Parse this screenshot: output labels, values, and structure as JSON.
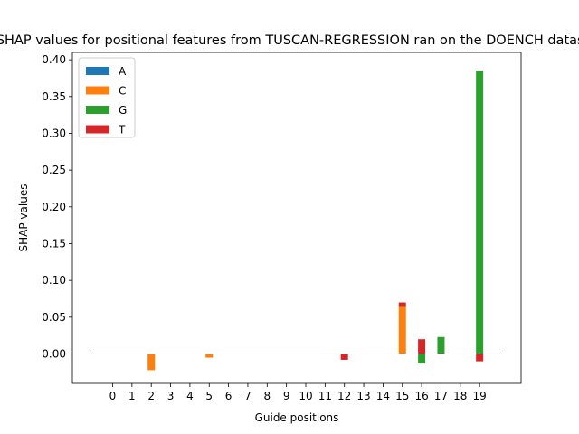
{
  "chart_data": {
    "type": "bar",
    "title": "SHAP values for positional features from TUSCAN-REGRESSION ran on the DOENCH dataset",
    "xlabel": "Guide positions",
    "ylabel": "SHAP values",
    "categories": [
      "0",
      "1",
      "2",
      "3",
      "4",
      "5",
      "6",
      "7",
      "8",
      "9",
      "10",
      "11",
      "12",
      "13",
      "14",
      "15",
      "16",
      "17",
      "18",
      "19"
    ],
    "ylim": [
      -0.04,
      0.41
    ],
    "yticks": [
      0.0,
      0.05,
      0.1,
      0.15,
      0.2,
      0.25,
      0.3,
      0.35,
      0.4
    ],
    "ytick_labels": [
      "0.00",
      "0.05",
      "0.10",
      "0.15",
      "0.20",
      "0.25",
      "0.30",
      "0.35",
      "0.40"
    ],
    "legend_position": "upper-left",
    "grid": false,
    "series": [
      {
        "name": "A",
        "color": "#1f77b4",
        "values": [
          0,
          0,
          0,
          0,
          0,
          0,
          0,
          0,
          0,
          0,
          0,
          0,
          0,
          0,
          0,
          0,
          0,
          0,
          0,
          0
        ]
      },
      {
        "name": "C",
        "color": "#ff7f0e",
        "values": [
          0,
          0,
          -0.022,
          0,
          0,
          -0.005,
          0,
          0,
          0,
          0,
          0,
          0,
          0,
          0,
          0,
          0.065,
          0,
          0,
          0,
          0
        ]
      },
      {
        "name": "G",
        "color": "#2ca02c",
        "values": [
          0,
          0,
          0,
          0,
          0,
          0,
          0,
          0,
          0,
          0,
          0,
          0,
          0,
          0,
          0,
          0,
          -0.013,
          0.023,
          0,
          0.385
        ]
      },
      {
        "name": "T",
        "color": "#d62728",
        "values": [
          0,
          0,
          0,
          0,
          0,
          0,
          0,
          0,
          0,
          0,
          0,
          0,
          -0.008,
          0,
          0,
          0.005,
          0.02,
          0,
          0,
          -0.01
        ]
      }
    ]
  }
}
